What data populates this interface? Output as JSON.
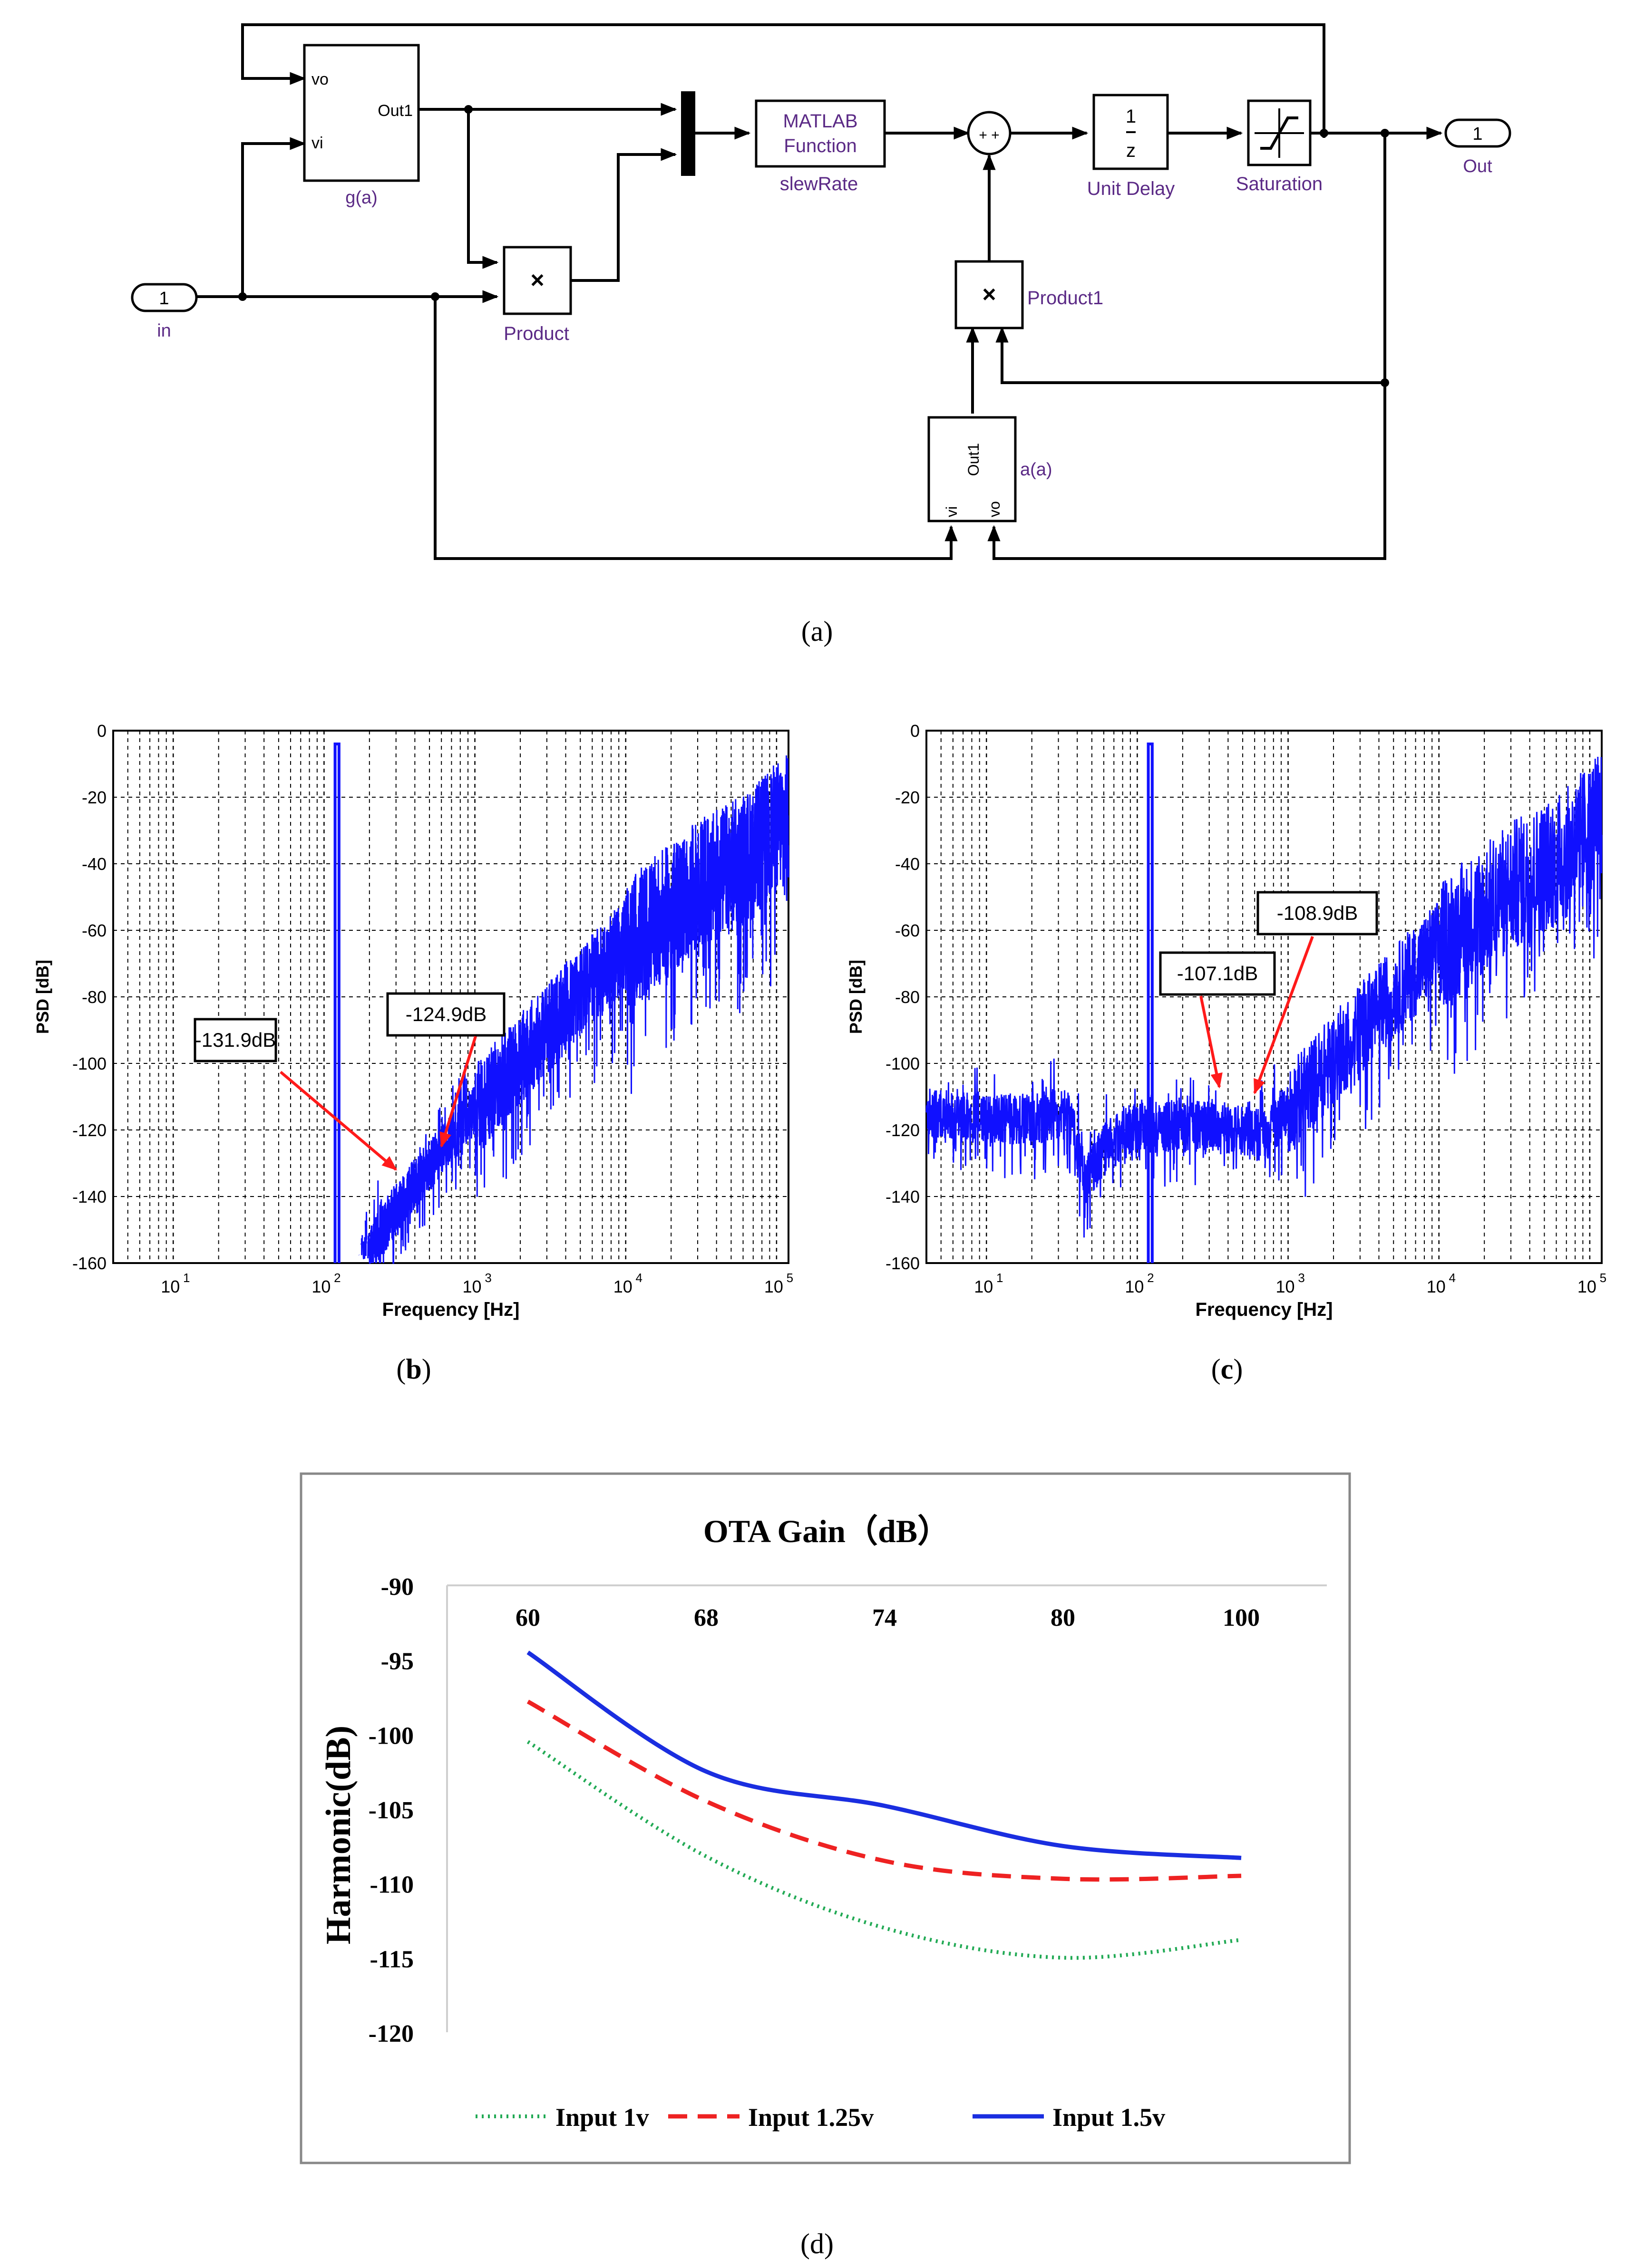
{
  "captions": {
    "a": "(a)",
    "b": "b",
    "c": "c",
    "d": "(d)"
  },
  "simulink": {
    "in_port": {
      "num": "1",
      "label": "in"
    },
    "out_port": {
      "num": "1",
      "label": "Out"
    },
    "g_block": {
      "in_vo": "vo",
      "in_vi": "vi",
      "out": "Out1",
      "label": "g(a)"
    },
    "product": {
      "symbol": "×",
      "label": "Product"
    },
    "matlab_fn": {
      "line1": "MATLAB",
      "line2": "Function",
      "label": "slewRate"
    },
    "sum": {
      "signs": "+ +"
    },
    "unit_delay": {
      "num": "1",
      "den": "z",
      "label": "Unit Delay"
    },
    "saturation": {
      "label": "Saturation"
    },
    "product1": {
      "symbol": "×",
      "label": "Product1"
    },
    "a_block": {
      "out": "Out1",
      "in_vi": "vi",
      "in_vo": "vo",
      "label": "a(a)"
    }
  },
  "psd_common": {
    "ylabel": "PSD [dB]",
    "xlabel": "Frequency [Hz]",
    "yticks": [
      "0",
      "-20",
      "-40",
      "-60",
      "-80",
      "-100",
      "-120",
      "-140",
      "-160"
    ],
    "xtick_base": "10",
    "xtick_exps": [
      "1",
      "2",
      "3",
      "4",
      "5"
    ]
  },
  "chart_data": [
    {
      "id": "b",
      "type": "line",
      "xscale": "log",
      "xlim": [
        4,
        120000
      ],
      "ylim": [
        -160,
        0
      ],
      "xlabel": "Frequency [Hz]",
      "ylabel": "PSD [dB]",
      "color": "#1010ff",
      "tone": {
        "freq_hz": 122,
        "peak_db": -4
      },
      "noise_floor": [
        [
          170,
          -160
        ],
        [
          300,
          -143
        ],
        [
          600,
          -125
        ],
        [
          1000,
          -113
        ],
        [
          3000,
          -88
        ],
        [
          10000,
          -63
        ],
        [
          30000,
          -45
        ],
        [
          70000,
          -35
        ],
        [
          110000,
          -25
        ]
      ],
      "annotations": [
        {
          "label": "-131.9dB",
          "point_hz": 300,
          "point_db": -131.9
        },
        {
          "label": "-124.9dB",
          "point_hz": 600,
          "point_db": -124.9
        }
      ]
    },
    {
      "id": "c",
      "type": "line",
      "xscale": "log",
      "xlim": [
        4,
        120000
      ],
      "ylim": [
        -160,
        0
      ],
      "xlabel": "Frequency [Hz]",
      "ylabel": "PSD [dB]",
      "color": "#1010ff",
      "tone": {
        "freq_hz": 122,
        "peak_db": -4
      },
      "noise_floor": [
        [
          4,
          -115
        ],
        [
          20,
          -116
        ],
        [
          35,
          -114
        ],
        [
          45,
          -135
        ],
        [
          60,
          -125
        ],
        [
          100,
          -118
        ],
        [
          300,
          -118
        ],
        [
          700,
          -121
        ],
        [
          1000,
          -113
        ],
        [
          3000,
          -88
        ],
        [
          10000,
          -63
        ],
        [
          30000,
          -45
        ],
        [
          70000,
          -35
        ],
        [
          110000,
          -25
        ]
      ],
      "annotations": [
        {
          "label": "-107.1dB",
          "point_hz": 350,
          "point_db": -107.1
        },
        {
          "label": "-108.9dB",
          "point_hz": 600,
          "point_db": -108.9
        }
      ]
    },
    {
      "id": "d",
      "type": "line",
      "title": "OTA Gain（dB）",
      "xlabel": "",
      "ylabel": "Harmonic(dB)",
      "categories": [
        "60",
        "68",
        "74",
        "80",
        "100"
      ],
      "yticks": [
        "-90",
        "-95",
        "-100",
        "-105",
        "-110",
        "-115",
        "-120"
      ],
      "ylim": [
        -120,
        -90
      ],
      "series": [
        {
          "name": "Input 1v",
          "color": "#22aa55",
          "style": "dotted",
          "values": [
            -100.5,
            -108.2,
            -113.0,
            -115.0,
            -113.8
          ]
        },
        {
          "name": "Input 1.25v",
          "color": "#ee2222",
          "style": "dashed",
          "values": [
            -97.8,
            -104.5,
            -108.5,
            -109.7,
            -109.5
          ]
        },
        {
          "name": "Input 1.5v",
          "color": "#1a2ee0",
          "style": "solid",
          "values": [
            -94.5,
            -102.5,
            -104.8,
            -107.5,
            -108.3
          ]
        }
      ]
    }
  ]
}
